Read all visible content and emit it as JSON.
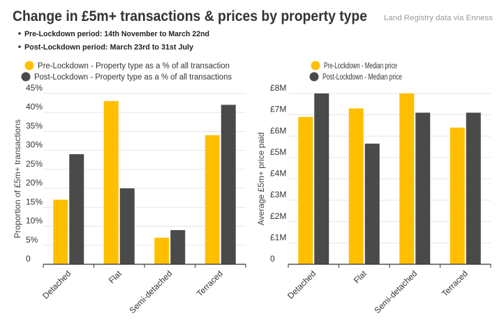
{
  "header": {
    "title": "Change in £5m+ transactions & prices by property type",
    "source": "Land Registry data via Enness",
    "bullets": [
      "Pre-Lockdown period: 14th November to March 22nd",
      "Post-Lockdown period: March 23rd to 31st July"
    ]
  },
  "colors": {
    "pre": "#FFBF00",
    "post": "#4A4A4A",
    "grid": "#e6e6e6",
    "axis": "#333333"
  },
  "chart_data": [
    {
      "type": "bar",
      "title": "",
      "xlabel": "",
      "ylabel": "Proportion of £5m+ transactions",
      "ylim": [
        0,
        45
      ],
      "grid": true,
      "legend_position": "top",
      "yticks": [
        0,
        5,
        10,
        15,
        20,
        25,
        30,
        35,
        40,
        45
      ],
      "ytick_labels": [
        "0",
        "5%",
        "10%",
        "15%",
        "20%",
        "25%",
        "30%",
        "35%",
        "40%",
        "45%"
      ],
      "categories": [
        "Detached",
        "Flat",
        "Semi-detached",
        "Terraced"
      ],
      "series": [
        {
          "name": "Pre-Lockdown - Property type as a % of all transaction",
          "values": [
            17,
            43,
            7,
            34
          ]
        },
        {
          "name": "Post-Lockdown - Property type as a % of all transactions",
          "values": [
            29,
            20,
            9,
            42
          ]
        }
      ]
    },
    {
      "type": "bar",
      "title": "",
      "xlabel": "",
      "ylabel": "Average £5m+ price paid",
      "ylim": [
        0,
        8
      ],
      "grid": true,
      "legend_position": "top",
      "yticks": [
        0,
        1,
        2,
        3,
        4,
        5,
        6,
        7,
        8
      ],
      "ytick_labels": [
        "0",
        "£1M",
        "£2M",
        "£3M",
        "£4M",
        "£5M",
        "£6M",
        "£7M",
        "£8M"
      ],
      "categories": [
        "Detached",
        "Flat",
        "Semi-detached",
        "Terraced"
      ],
      "series": [
        {
          "name": "Pre-Lockdown - Median price",
          "values": [
            6.9,
            7.3,
            8.0,
            6.4
          ]
        },
        {
          "name": "Post-Lockdown - Median price",
          "values": [
            8.0,
            5.65,
            7.1,
            7.1
          ]
        }
      ]
    }
  ]
}
